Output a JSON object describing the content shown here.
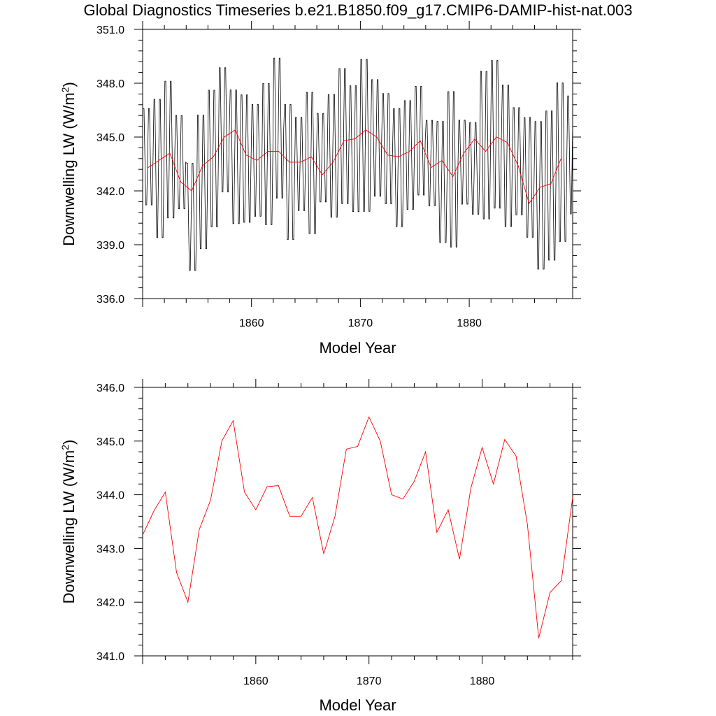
{
  "page": {
    "title": "Global Diagnostics Timeseries b.e21.B1850.f09_g17.CMIP6-DAMIP-hist-nat.003"
  },
  "colors": {
    "monthly_line": "#000000",
    "annual_line": "#ff0000",
    "axes": "#000000"
  },
  "chart_data": [
    {
      "type": "line",
      "title": "",
      "xlabel": "Model Year",
      "ylabel": "Downwelling LW (W/m²)",
      "ylabel_text": "Downwelling LW (W/m",
      "ylabel_sup": "2",
      "ylabel_suffix": ")",
      "xlim": [
        1850.0,
        1889.5
      ],
      "ylim": [
        336.0,
        351.0
      ],
      "x_ticks": [
        1860,
        1870,
        1880
      ],
      "x_tick_labels": [
        "1860",
        "1870",
        "1880"
      ],
      "y_ticks": [
        336.0,
        339.0,
        342.0,
        345.0,
        348.0,
        351.0
      ],
      "y_tick_labels": [
        "336.0",
        "339.0",
        "342.0",
        "345.0",
        "348.0",
        "351.0"
      ],
      "legend": "none",
      "grid": false,
      "series": [
        {
          "values_monthly_peaks_troughs": {
            "years": [
              1850,
              1851,
              1852,
              1853,
              1854,
              1855,
              1856,
              1857,
              1858,
              1859,
              1860,
              1861,
              1862,
              1863,
              1864,
              1865,
              1866,
              1867,
              1868,
              1869,
              1870,
              1871,
              1872,
              1873,
              1874,
              1875,
              1876,
              1877,
              1878,
              1879,
              1880,
              1881,
              1882,
              1883,
              1884,
              1885,
              1886,
              1887,
              1888,
              1889
            ],
            "annual_max": [
              347.0,
              347.7,
              348.7,
              346.6,
              344.0,
              346.8,
              348.2,
              349.4,
              348.2,
              347.9,
              347.3,
              348.6,
              350.0,
              347.4,
              346.5,
              348.1,
              346.7,
              347.9,
              349.4,
              348.4,
              350.0,
              348.7,
              347.9,
              347.1,
              347.5,
              348.3,
              346.3,
              346.4,
              348.2,
              346.3,
              346.2,
              349.3,
              349.9,
              348.5,
              347.1,
              346.6,
              346.5,
              347.1,
              348.7,
              347.8
            ],
            "annual_min": [
              340.8,
              338.8,
              339.9,
              340.6,
              337.1,
              338.2,
              339.4,
              341.4,
              339.6,
              339.7,
              340.1,
              339.5,
              341.0,
              338.7,
              340.5,
              339.0,
              341.0,
              340.0,
              340.7,
              340.3,
              340.2,
              341.2,
              340.8,
              339.5,
              340.5,
              341.3,
              340.8,
              338.6,
              338.2,
              340.9,
              340.3,
              339.8,
              340.4,
              339.4,
              340.2,
              338.9,
              337.0,
              337.5,
              338.5,
              340.2
            ]
          }
        },
        {
          "x": [
            1850.5,
            1851.5,
            1852.5,
            1853.5,
            1854.5,
            1855.5,
            1856.5,
            1857.5,
            1858.5,
            1859.5,
            1860.5,
            1861.5,
            1862.5,
            1863.5,
            1864.5,
            1865.5,
            1866.5,
            1867.5,
            1868.5,
            1869.5,
            1870.5,
            1871.5,
            1872.5,
            1873.5,
            1874.5,
            1875.5,
            1876.5,
            1877.5,
            1878.5,
            1879.5,
            1880.5,
            1881.5,
            1882.5,
            1883.5,
            1884.5,
            1885.5,
            1886.5,
            1887.5,
            1888.5
          ],
          "values": [
            343.3,
            343.7,
            344.1,
            342.5,
            342.0,
            343.4,
            343.9,
            345.0,
            345.4,
            344.0,
            343.7,
            344.2,
            344.2,
            343.6,
            343.6,
            343.9,
            342.9,
            343.6,
            344.8,
            344.9,
            345.4,
            345.0,
            344.0,
            343.9,
            344.2,
            344.8,
            343.3,
            343.7,
            342.8,
            344.1,
            344.9,
            344.2,
            345.0,
            344.7,
            343.4,
            341.3,
            342.2,
            342.4,
            343.9
          ]
        }
      ]
    },
    {
      "type": "line",
      "title": "",
      "xlabel": "Model Year",
      "ylabel": "Downwelling LW (W/m²)",
      "ylabel_text": "Downwelling LW (W/m",
      "ylabel_sup": "2",
      "ylabel_suffix": ")",
      "xlim": [
        1850.0,
        1888.0
      ],
      "ylim": [
        341.0,
        346.0
      ],
      "x_ticks": [
        1860,
        1870,
        1880
      ],
      "x_tick_labels": [
        "1860",
        "1870",
        "1880"
      ],
      "y_ticks": [
        341.0,
        342.0,
        343.0,
        344.0,
        345.0,
        346.0
      ],
      "y_tick_labels": [
        "341.0",
        "342.0",
        "343.0",
        "344.0",
        "345.0",
        "346.0"
      ],
      "legend": "none",
      "grid": false,
      "series": [
        {
          "x": [
            1850.0,
            1851.0,
            1852.0,
            1853.0,
            1854.0,
            1855.0,
            1856.0,
            1857.0,
            1858.0,
            1859.0,
            1860.0,
            1861.0,
            1862.0,
            1863.0,
            1864.0,
            1865.0,
            1866.0,
            1867.0,
            1868.0,
            1869.0,
            1870.0,
            1871.0,
            1872.0,
            1873.0,
            1874.0,
            1875.0,
            1876.0,
            1877.0,
            1878.0,
            1879.0,
            1880.0,
            1881.0,
            1882.0,
            1883.0,
            1884.0,
            1885.0,
            1886.0,
            1887.0,
            1888.0
          ],
          "values": [
            343.25,
            343.7,
            344.05,
            342.55,
            342.0,
            343.35,
            343.9,
            345.0,
            345.38,
            344.05,
            343.72,
            344.15,
            344.17,
            343.6,
            343.6,
            343.95,
            342.9,
            343.6,
            344.85,
            344.9,
            345.45,
            345.0,
            344.0,
            343.92,
            344.25,
            344.8,
            343.3,
            343.72,
            342.8,
            344.12,
            344.88,
            344.2,
            345.03,
            344.72,
            343.45,
            341.33,
            342.18,
            342.4,
            343.95
          ]
        }
      ]
    }
  ]
}
